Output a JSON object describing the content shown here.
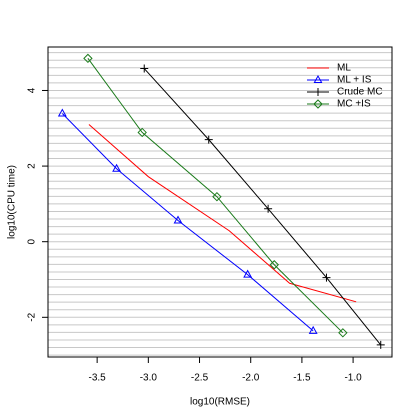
{
  "chart_data": {
    "type": "line",
    "xlabel": "log10(RMSE)",
    "ylabel": "log10(CPU time)",
    "xlim": [
      -3.98,
      -0.62
    ],
    "ylim": [
      -3.05,
      5.15
    ],
    "xticks": [
      -3.5,
      {
        "value": -3,
        "label": "-3.0"
      },
      -2.5,
      {
        "value": -2,
        "label": "-2.0"
      },
      -1.5,
      {
        "value": -1,
        "label": "-1.0"
      }
    ],
    "yticks": [
      -2,
      0,
      2,
      4
    ],
    "ygrid": [
      -3,
      -2.8,
      -2.6,
      -2.4,
      -2.2,
      -2,
      -1.8,
      -1.6,
      -1.4,
      -1.2,
      -1,
      -0.8,
      -0.6,
      -0.4,
      -0.2,
      0,
      0.2,
      0.4,
      0.6,
      0.8,
      1,
      1.2,
      1.4,
      1.6,
      1.8,
      2,
      2.2,
      2.4,
      2.6,
      2.8,
      3,
      3.2,
      3.4,
      3.6,
      3.8,
      4,
      4.2,
      4.4,
      4.6,
      4.8,
      5
    ],
    "grid": true,
    "legend": "top-right",
    "series": [
      {
        "name": "ML",
        "color": "#ff0000",
        "marker": "none",
        "x": [
          -3.58,
          -3.0,
          -2.21,
          -1.62,
          -0.97
        ],
        "values": [
          3.1,
          1.72,
          0.29,
          -1.1,
          -1.59
        ]
      },
      {
        "name": "ML + IS",
        "color": "#0000ff",
        "marker": "triangle",
        "x": [
          -3.84,
          -3.31,
          -2.71,
          -2.03,
          -1.39
        ],
        "values": [
          3.39,
          1.93,
          0.56,
          -0.87,
          -2.36
        ]
      },
      {
        "name": "Crude MC",
        "color": "#000000",
        "marker": "plus",
        "x": [
          -3.04,
          -2.41,
          -1.83,
          -1.26,
          -0.73
        ],
        "values": [
          4.58,
          2.7,
          0.87,
          -0.95,
          -2.73
        ]
      },
      {
        "name": "MC +IS",
        "color": "#1a7a1a",
        "marker": "diamond",
        "x": [
          -3.59,
          -3.06,
          -2.33,
          -1.77,
          -1.1
        ],
        "values": [
          4.85,
          2.89,
          1.19,
          -0.61,
          -2.41
        ]
      }
    ]
  }
}
